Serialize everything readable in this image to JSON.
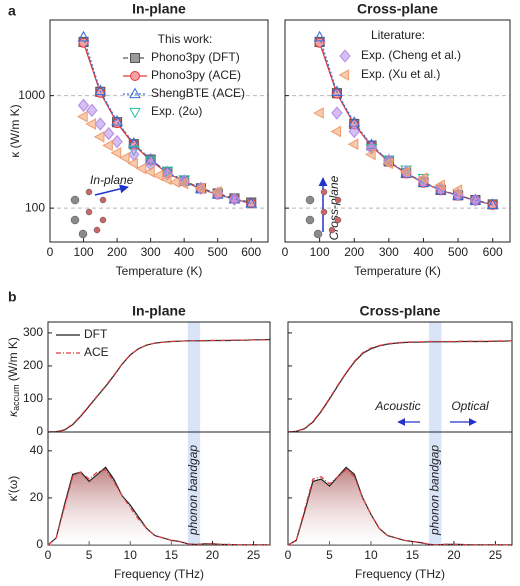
{
  "panel_labels": [
    "a",
    "b"
  ],
  "chart_data": [
    {
      "type": "line",
      "title": "In-plane",
      "xlabel": "Temperature (K)",
      "ylabel": "κ (W/m K)",
      "xlim": [
        0,
        650
      ],
      "xticks": [
        0,
        100,
        200,
        300,
        400,
        500,
        600
      ],
      "ylim": [
        50,
        4700
      ],
      "yticks": [
        100,
        1000
      ],
      "yscale": "log",
      "grid": true,
      "show_ytick_labels": true,
      "legend_title": "This work:",
      "annotations": [
        "In-plane"
      ],
      "series": [
        {
          "name": "Phono3py (DFT)",
          "color": "#555555",
          "marker": "square",
          "dash": "5,3",
          "in_legend": true,
          "x": [
            100,
            150,
            200,
            250,
            300,
            350,
            400,
            450,
            500,
            550,
            600
          ],
          "values": [
            3000,
            1080,
            580,
            370,
            270,
            210,
            175,
            150,
            135,
            122,
            112
          ]
        },
        {
          "name": "Phono3py (ACE)",
          "color": "#e0393e",
          "marker": "circle",
          "dash": "",
          "in_legend": true,
          "x": [
            100,
            150,
            200,
            250,
            300,
            350,
            400,
            450,
            500,
            550,
            600
          ],
          "values": [
            2950,
            1060,
            570,
            365,
            265,
            205,
            172,
            148,
            132,
            120,
            110
          ]
        },
        {
          "name": "ShengBTE (ACE)",
          "color": "#3a6fd8",
          "marker": "triangle-up",
          "dash": "2,2",
          "in_legend": true,
          "x": [
            100,
            150,
            200,
            250,
            300,
            350,
            400,
            450,
            500,
            550,
            600
          ],
          "values": [
            3300,
            1100,
            590,
            375,
            270,
            208,
            172,
            148,
            132,
            120,
            110
          ]
        },
        {
          "name": "Exp. (2ω)",
          "color": "#2fbf9f",
          "marker": "triangle-down",
          "dash": null,
          "in_legend": true,
          "x": [
            250,
            300,
            350,
            400
          ],
          "values": [
            330,
            265,
            215,
            180
          ]
        },
        {
          "name": "Exp. (Cheng et al.)",
          "color": "#b58de8",
          "marker": "diamond",
          "dash": null,
          "in_legend": false,
          "x": [
            100,
            125,
            150,
            175,
            200,
            250,
            300,
            350,
            400,
            450,
            500,
            550
          ],
          "values": [
            820,
            740,
            560,
            460,
            390,
            300,
            245,
            200,
            175,
            150,
            135,
            120
          ]
        },
        {
          "name": "Exp. (Xu et al.)",
          "color": "#f0a070",
          "marker": "triangle-left",
          "dash": null,
          "in_legend": false,
          "x": [
            100,
            125,
            150,
            175,
            200,
            225,
            250,
            275,
            300,
            325,
            350,
            375,
            400,
            450,
            500
          ],
          "values": [
            650,
            560,
            430,
            360,
            310,
            280,
            250,
            225,
            210,
            195,
            180,
            170,
            165,
            150,
            140
          ]
        }
      ]
    },
    {
      "type": "line",
      "title": "Cross-plane",
      "xlabel": "Temperature (K)",
      "xlim": [
        0,
        650
      ],
      "xticks": [
        0,
        100,
        200,
        300,
        400,
        500,
        600
      ],
      "ylim": [
        50,
        4700
      ],
      "yticks": [
        100,
        1000
      ],
      "yscale": "log",
      "grid": true,
      "show_ytick_labels": false,
      "legend_title": "Literature:",
      "annotations": [
        "Cross-plane"
      ],
      "series": [
        {
          "name": "Phono3py (DFT)",
          "color": "#555555",
          "marker": "square",
          "dash": "5,3",
          "in_legend": false,
          "x": [
            100,
            150,
            200,
            250,
            300,
            350,
            400,
            450,
            500,
            550,
            600
          ],
          "values": [
            3000,
            1050,
            560,
            360,
            260,
            205,
            170,
            145,
            130,
            118,
            108
          ]
        },
        {
          "name": "Phono3py (ACE)",
          "color": "#e0393e",
          "marker": "circle",
          "dash": "",
          "in_legend": false,
          "x": [
            100,
            150,
            200,
            250,
            300,
            350,
            400,
            450,
            500,
            550,
            600
          ],
          "values": [
            2950,
            1040,
            555,
            355,
            258,
            203,
            168,
            144,
            129,
            117,
            107
          ]
        },
        {
          "name": "ShengBTE (ACE)",
          "color": "#3a6fd8",
          "marker": "triangle-up",
          "dash": "2,2",
          "in_legend": false,
          "x": [
            100,
            150,
            200,
            250,
            300,
            350,
            400,
            450,
            500,
            550,
            600
          ],
          "values": [
            3300,
            1080,
            575,
            365,
            262,
            204,
            168,
            144,
            129,
            117,
            107
          ]
        },
        {
          "name": "Exp. (2ω)",
          "color": "#2fbf9f",
          "marker": "triangle-down",
          "dash": null,
          "in_legend": false,
          "x": [
            250,
            300,
            350,
            400
          ],
          "values": [
            340,
            270,
            220,
            185
          ]
        },
        {
          "name": "Exp. (Cheng et al.)",
          "color": "#b58de8",
          "marker": "diamond",
          "dash": null,
          "in_legend": true,
          "x": [
            150,
            200,
            250,
            300,
            350,
            400,
            450,
            500,
            550
          ],
          "values": [
            700,
            480,
            340,
            265,
            210,
            175,
            150,
            132,
            118
          ]
        },
        {
          "name": "Exp. (Xu et al.)",
          "color": "#f0a070",
          "marker": "triangle-left",
          "dash": null,
          "in_legend": true,
          "x": [
            100,
            150,
            200,
            250,
            300,
            350,
            400,
            450,
            500
          ],
          "values": [
            700,
            480,
            370,
            300,
            250,
            210,
            185,
            160,
            145
          ]
        }
      ]
    },
    {
      "type": "line",
      "title": "In-plane",
      "ylabel_main": "κ",
      "ylabel_sub": "accum",
      "ylabel_unit": " (W/m K)",
      "xlim": [
        0,
        27
      ],
      "ylim": [
        0,
        333
      ],
      "yticks": [
        0,
        100,
        200,
        300
      ],
      "grid": false,
      "show_ytick_labels": true,
      "band": [
        17,
        18.5
      ],
      "x": [
        0,
        1,
        2,
        3,
        4,
        5,
        6,
        7,
        8,
        9,
        10,
        11,
        12,
        13,
        14,
        15,
        16,
        17,
        18,
        19,
        20,
        21,
        22,
        23,
        24,
        25,
        26,
        27
      ],
      "series": [
        {
          "name": "DFT",
          "color": "#222222",
          "dash": "",
          "in_legend": true,
          "values": [
            0,
            1,
            6,
            22,
            48,
            78,
            108,
            138,
            170,
            205,
            233,
            252,
            263,
            269,
            272,
            274,
            275,
            276,
            276,
            276,
            277,
            277,
            277,
            278,
            278,
            279,
            279,
            280
          ]
        },
        {
          "name": "ACE",
          "color": "#e0393e",
          "dash": "5,2,1,2",
          "in_legend": true,
          "values": [
            0,
            1,
            7,
            24,
            50,
            80,
            110,
            140,
            172,
            206,
            234,
            252,
            263,
            269,
            272,
            274,
            275,
            276,
            276,
            277,
            277,
            277,
            278,
            278,
            278,
            279,
            279,
            280
          ]
        }
      ]
    },
    {
      "type": "line",
      "title": "Cross-plane",
      "xlim": [
        0,
        27
      ],
      "ylim": [
        0,
        333
      ],
      "yticks": [
        0,
        100,
        200,
        300
      ],
      "grid": false,
      "show_ytick_labels": false,
      "band": [
        17,
        18.5
      ],
      "annotations": [
        "Acoustic",
        "Optical"
      ],
      "x": [
        0,
        1,
        2,
        3,
        4,
        5,
        6,
        7,
        8,
        9,
        10,
        11,
        12,
        13,
        14,
        15,
        16,
        17,
        18,
        19,
        20,
        21,
        22,
        23,
        24,
        25,
        26,
        27
      ],
      "series": [
        {
          "name": "DFT",
          "color": "#222222",
          "dash": "",
          "in_legend": false,
          "values": [
            0,
            2,
            10,
            30,
            62,
            100,
            140,
            178,
            212,
            238,
            252,
            261,
            266,
            269,
            271,
            272,
            272,
            273,
            273,
            273,
            273,
            274,
            274,
            274,
            274,
            275,
            275,
            276
          ]
        },
        {
          "name": "ACE",
          "color": "#e0393e",
          "dash": "5,2,1,2",
          "in_legend": false,
          "values": [
            0,
            2,
            11,
            32,
            64,
            102,
            142,
            180,
            214,
            240,
            254,
            262,
            267,
            270,
            272,
            273,
            273,
            274,
            274,
            274,
            274,
            275,
            275,
            275,
            275,
            276,
            276,
            276
          ]
        }
      ]
    },
    {
      "type": "area",
      "xlabel": "Frequency (THz)",
      "ylabel": "κ′(ω)",
      "xlim": [
        0,
        27
      ],
      "xticks": [
        0,
        5,
        10,
        15,
        20,
        25
      ],
      "ylim": [
        0,
        48
      ],
      "yticks": [
        0,
        20,
        40
      ],
      "grid": false,
      "show_ytick_labels": true,
      "band": [
        17,
        18.5
      ],
      "band_label": "phonon bandgap",
      "fill": "#c98a8a",
      "x": [
        0,
        1,
        2,
        3,
        4,
        5,
        6,
        7,
        8,
        9,
        10,
        11,
        12,
        13,
        14,
        15,
        16,
        17,
        18,
        19,
        20,
        21,
        22,
        23,
        24,
        25,
        26,
        27
      ],
      "series": [
        {
          "name": "DFT",
          "color": "#222222",
          "dash": "",
          "in_legend": false,
          "values": [
            0,
            3,
            17,
            30,
            31,
            27,
            30,
            33,
            28,
            21,
            17,
            12,
            7,
            4,
            3,
            2,
            1.5,
            0.5,
            0.2,
            0.5,
            0.5,
            0.3,
            0.2,
            0.1,
            0.1,
            0.1,
            0.1,
            0
          ]
        },
        {
          "name": "ACE",
          "color": "#e0393e",
          "dash": "5,2,1,2",
          "in_legend": false,
          "values": [
            0,
            3,
            16,
            29,
            31,
            28,
            31,
            32,
            27,
            21,
            16,
            11,
            7,
            4,
            3,
            2,
            1.5,
            0.5,
            0.2,
            0.5,
            0.5,
            0.3,
            0.2,
            0.1,
            0.1,
            0.1,
            0.1,
            0
          ]
        }
      ]
    },
    {
      "type": "area",
      "xlabel": "Frequency (THz)",
      "xlim": [
        0,
        27
      ],
      "xticks": [
        0,
        5,
        10,
        15,
        20,
        25
      ],
      "ylim": [
        0,
        48
      ],
      "yticks": [
        0,
        20,
        40
      ],
      "grid": false,
      "show_ytick_labels": false,
      "band": [
        17,
        18.5
      ],
      "band_label": "phonon bandgap",
      "fill": "#c98a8a",
      "x": [
        0,
        1,
        2,
        3,
        4,
        5,
        6,
        7,
        8,
        9,
        10,
        11,
        12,
        13,
        14,
        15,
        16,
        17,
        18,
        19,
        20,
        21,
        22,
        23,
        24,
        25,
        26,
        27
      ],
      "series": [
        {
          "name": "DFT",
          "color": "#222222",
          "dash": "",
          "in_legend": false,
          "values": [
            0,
            2,
            14,
            27,
            28,
            25,
            29,
            33,
            30,
            20,
            13,
            7,
            4,
            3,
            2,
            1.5,
            1,
            0.3,
            0.1,
            0.3,
            0.3,
            0.2,
            0.1,
            0.1,
            0.1,
            0.1,
            0.1,
            0
          ]
        },
        {
          "name": "ACE",
          "color": "#e0393e",
          "dash": "5,2,1,2",
          "in_legend": false,
          "values": [
            0,
            2,
            15,
            28,
            29,
            26,
            29,
            32,
            29,
            20,
            13,
            7,
            4,
            3,
            2,
            1.5,
            1,
            0.3,
            0.1,
            0.3,
            0.3,
            0.2,
            0.1,
            0.1,
            0.1,
            0.1,
            0.1,
            0
          ]
        }
      ]
    }
  ]
}
